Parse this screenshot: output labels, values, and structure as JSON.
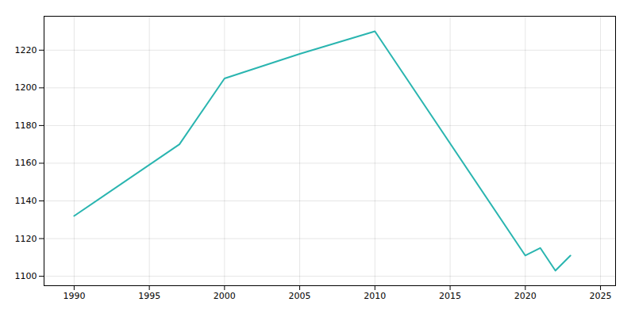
{
  "chart_data": {
    "type": "line",
    "x": [
      1990,
      1997,
      2000,
      2005,
      2010,
      2020,
      2021,
      2022,
      2023
    ],
    "values": [
      1132,
      1170,
      1205,
      1218,
      1230,
      1111,
      1115,
      1103,
      1111
    ],
    "color": "#2ab5b0",
    "xlim": [
      1988,
      2026
    ],
    "ylim": [
      1095,
      1238
    ],
    "xticks": [
      1990,
      1995,
      2000,
      2005,
      2010,
      2015,
      2020,
      2025
    ],
    "yticks": [
      1100,
      1120,
      1140,
      1160,
      1180,
      1200,
      1220
    ],
    "grid": true
  }
}
